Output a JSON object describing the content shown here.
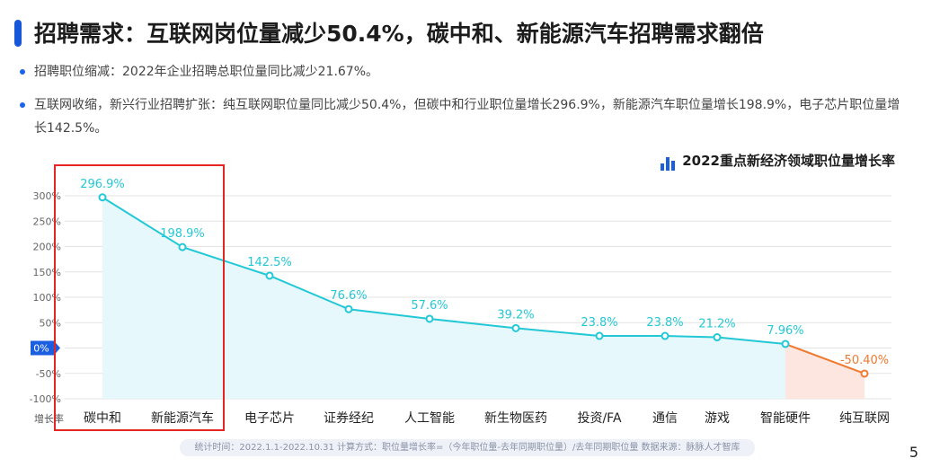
{
  "header": {
    "title": "招聘需求：互联网岗位量减少50.4%，碳中和、新能源汽车招聘需求翻倍",
    "bullets": [
      "招聘职位缩减：2022年企业招聘总职位量同比减少21.67%。",
      "互联网收缩，新兴行业招聘扩张：纯互联网职位量同比减少50.4%，但碳中和行业职位量增长296.9%，新能源汽车职位量增长198.9%，电子芯片职位量增长142.5%。"
    ]
  },
  "chart_data": {
    "type": "line",
    "title": "2022重点新经济领域职位量增长率",
    "ylabel": "增长率",
    "categories": [
      "碳中和",
      "新能源汽车",
      "电子芯片",
      "证券经纪",
      "人工智能",
      "新生物医药",
      "投资/FA",
      "通信",
      "游戏",
      "智能硬件",
      "纯互联网"
    ],
    "values": [
      296.9,
      198.9,
      142.5,
      76.6,
      57.6,
      39.2,
      23.8,
      23.8,
      21.2,
      7.96,
      -50.4
    ],
    "data_labels": [
      "296.9%",
      "198.9%",
      "142.5%",
      "76.6%",
      "57.6%",
      "39.2%",
      "23.8%",
      "23.8%",
      "21.2%",
      "7.96%",
      "-50.40%"
    ],
    "y_ticks": [
      "300%",
      "250%",
      "200%",
      "150%",
      "100%",
      "50%",
      "0%",
      "-50%",
      "-100%"
    ],
    "y_tick_values": [
      300,
      250,
      200,
      150,
      100,
      50,
      0,
      -50,
      -100
    ],
    "ylim": [
      -100,
      300
    ],
    "grid": true,
    "colors": {
      "positive": "#23c8d6",
      "negative": "#f07a30",
      "fill_positive": "#e6f8fb",
      "fill_negative": "#fde6df",
      "zero_badge": "#1b5fe0"
    }
  },
  "footer": {
    "note": "统计时间：2022.1.1-2022.10.31    计算方式：职位量增长率=（今年职位量-去年同期职位量）/去年同期职位量      数据来源：脉脉人才智库"
  },
  "page_number": "5"
}
